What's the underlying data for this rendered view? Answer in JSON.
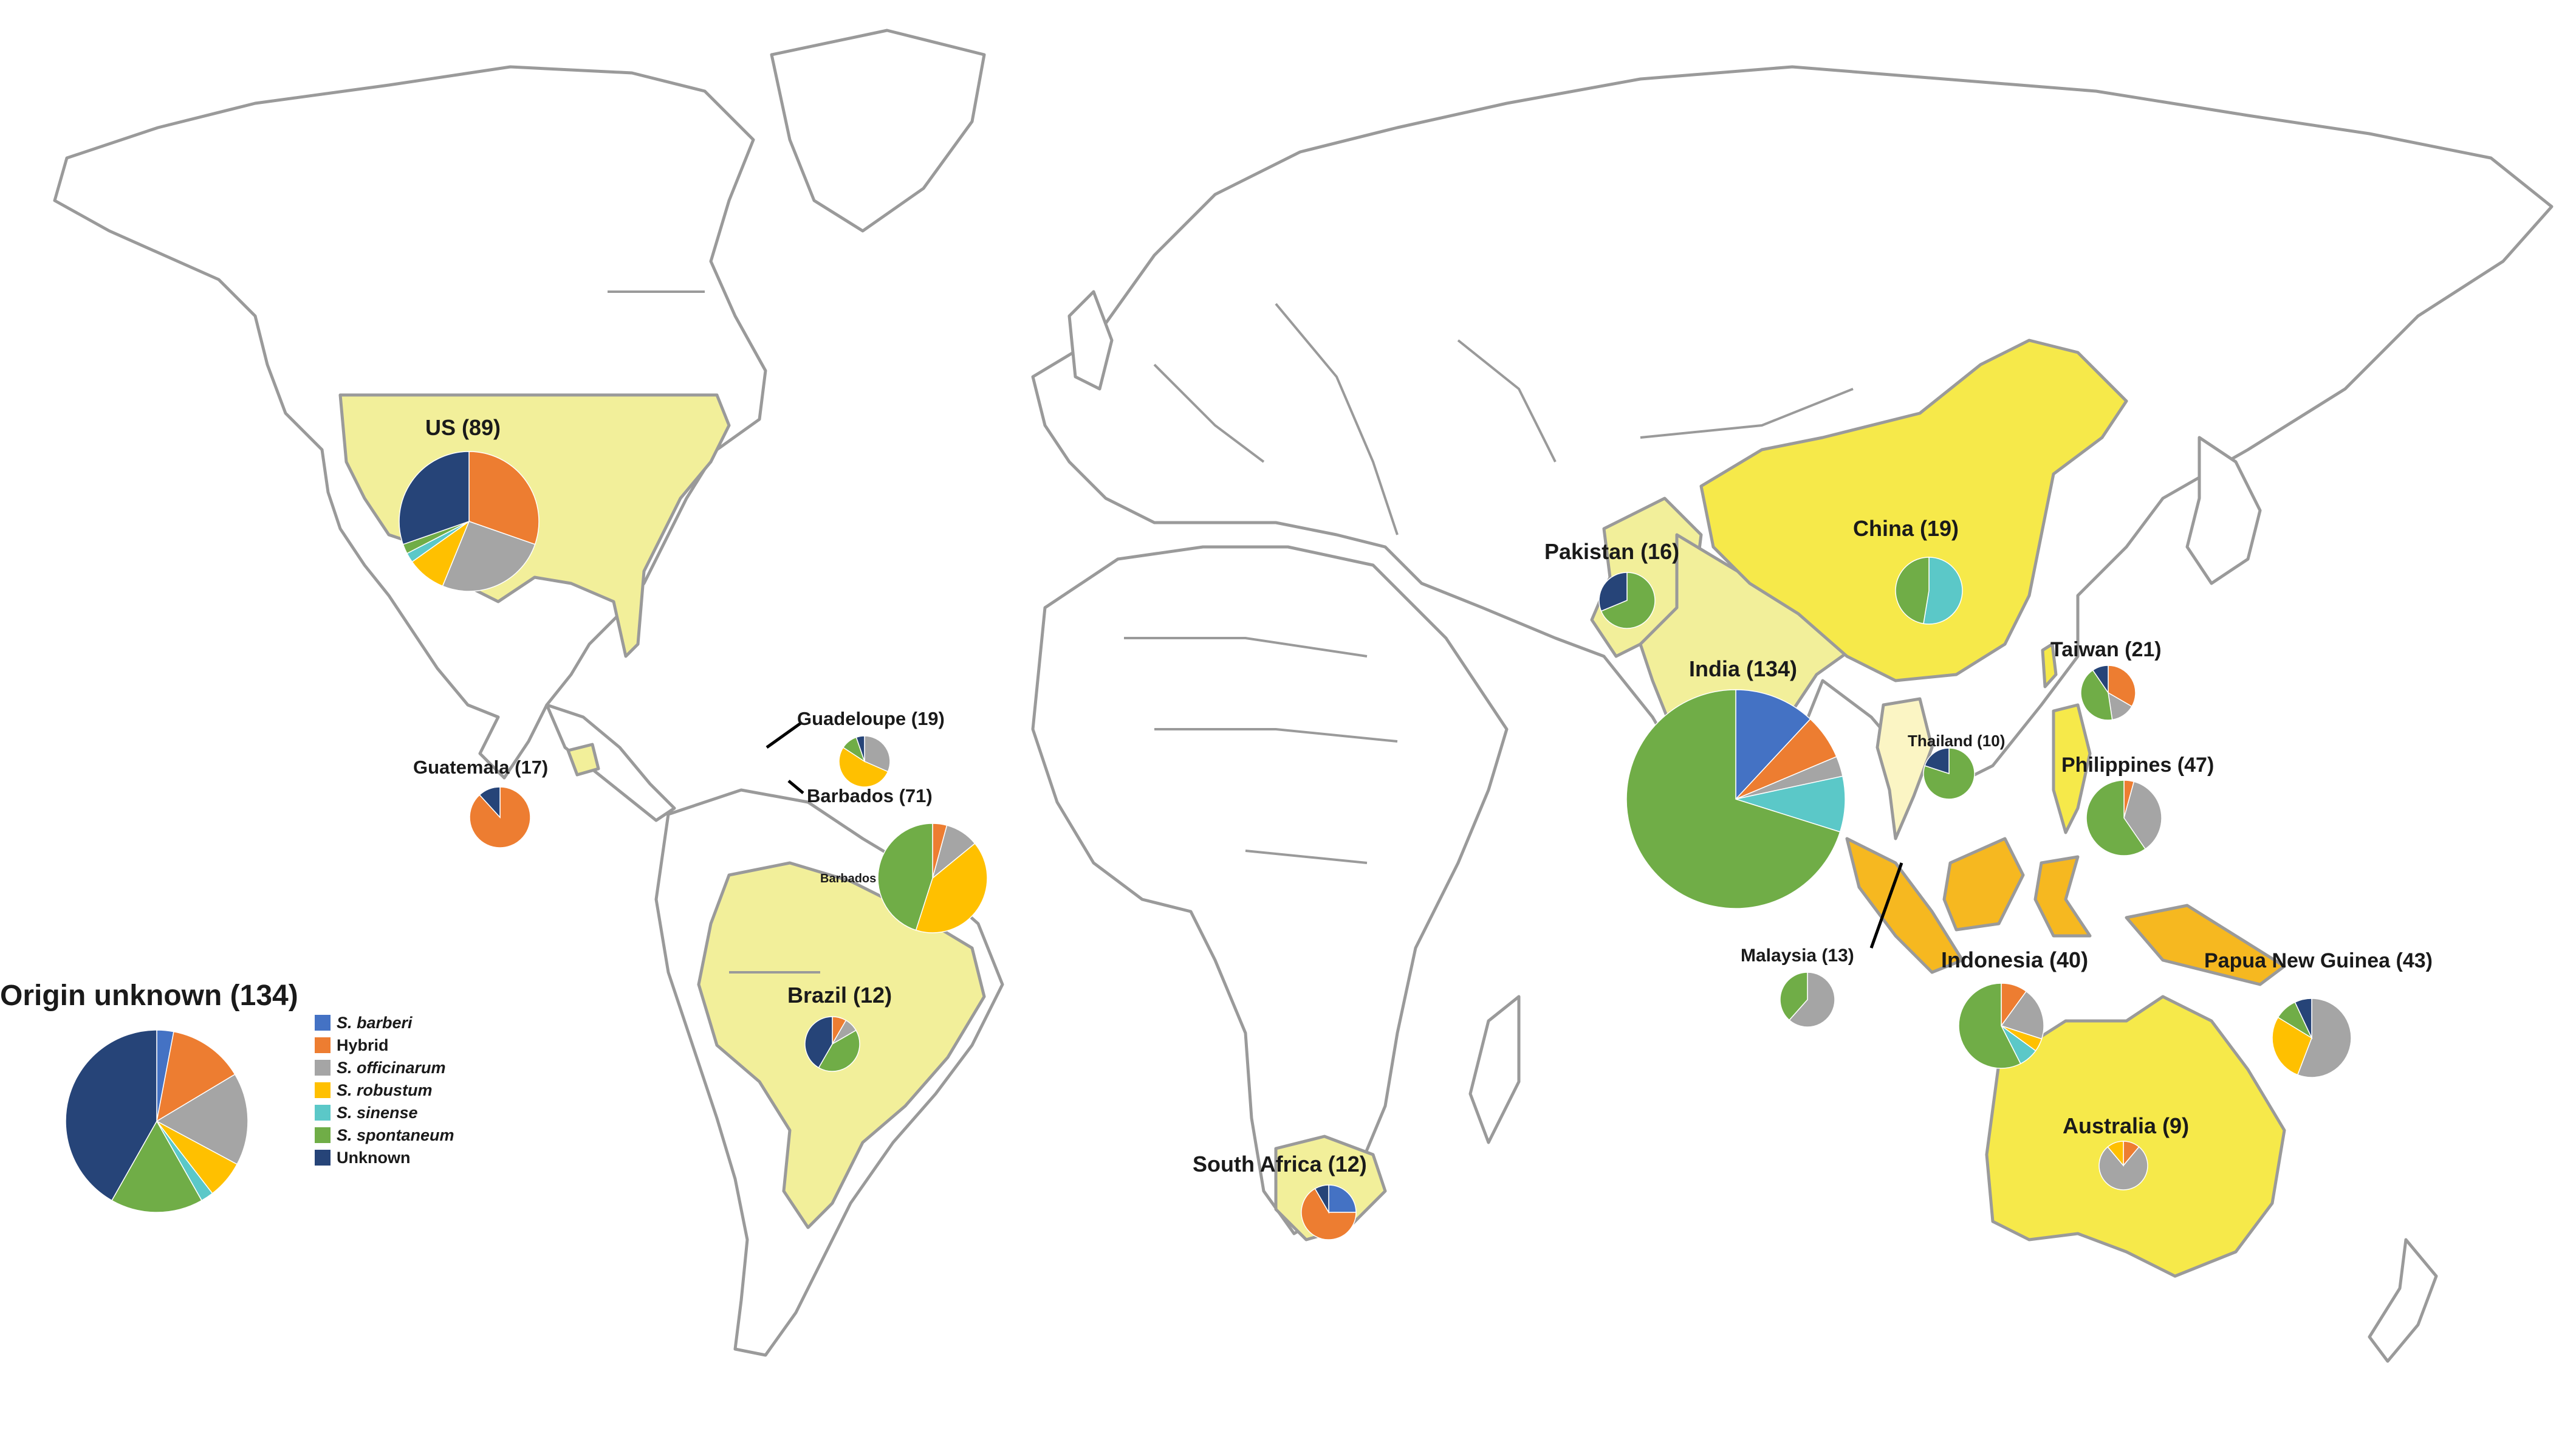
{
  "colors": {
    "land": "#ffffff",
    "border": "#9a9a9a",
    "highlight_light": "#f2ef9a",
    "highlight_strong": "#f6e94a",
    "highlight_orange": "#f6b820"
  },
  "legend": [
    {
      "label": "S. barberi",
      "color": "#4472c4",
      "italic": true
    },
    {
      "label": "Hybrid",
      "color": "#ed7d31",
      "italic": false
    },
    {
      "label": "S. officinarum",
      "color": "#a5a5a5",
      "italic": true
    },
    {
      "label": "S. robustum",
      "color": "#ffc000",
      "italic": true
    },
    {
      "label": "S. sinense",
      "color": "#5bc8c8",
      "italic": true
    },
    {
      "label": "S. spontaneum",
      "color": "#70ad47",
      "italic": true
    },
    {
      "label": "Unknown",
      "color": "#264478",
      "italic": false
    }
  ],
  "chart_data": {
    "type": "pie",
    "order": [
      "S. barberi",
      "Hybrid",
      "S. officinarum",
      "S. robustum",
      "S. sinense",
      "S. spontaneum",
      "Unknown"
    ],
    "pies": [
      {
        "id": "us",
        "label": "US (89)",
        "country": "US",
        "n": 89,
        "values": [
          0,
          27,
          23,
          8,
          2,
          2,
          27
        ]
      },
      {
        "id": "guatemala",
        "label": "Guatemala (17)",
        "country": "Guatemala",
        "n": 17,
        "values": [
          0,
          15,
          0,
          0,
          0,
          0,
          2
        ]
      },
      {
        "id": "guadeloupe",
        "label": "Guadeloupe (19)",
        "country": "Guadeloupe",
        "n": 19,
        "values": [
          0,
          0,
          6,
          10,
          0,
          2,
          1
        ]
      },
      {
        "id": "barbados",
        "label": "Barbados (71)",
        "country": "Barbados",
        "n": 71,
        "values": [
          0,
          3,
          7,
          29,
          0,
          32,
          0
        ]
      },
      {
        "id": "brazil",
        "label": "Brazil (12)",
        "country": "Brazil",
        "n": 12,
        "values": [
          0,
          1,
          1,
          0,
          0,
          5,
          5
        ]
      },
      {
        "id": "south_africa",
        "label": "South Africa (12)",
        "country": "South Africa",
        "n": 12,
        "values": [
          3,
          8,
          0,
          0,
          0,
          0,
          1
        ]
      },
      {
        "id": "pakistan",
        "label": "Pakistan (16)",
        "country": "Pakistan",
        "n": 16,
        "values": [
          0,
          0,
          0,
          0,
          0,
          11,
          5
        ]
      },
      {
        "id": "india",
        "label": "India (134)",
        "country": "India",
        "n": 134,
        "values": [
          16,
          9,
          4,
          0,
          11,
          94,
          0
        ]
      },
      {
        "id": "china",
        "label": "China (19)",
        "country": "China",
        "n": 19,
        "values": [
          0,
          0,
          0,
          0,
          10,
          9,
          0
        ]
      },
      {
        "id": "taiwan",
        "label": "Taiwan (21)",
        "country": "Taiwan",
        "n": 21,
        "values": [
          0,
          7,
          3,
          0,
          0,
          9,
          2
        ]
      },
      {
        "id": "thailand",
        "label": "Thailand (10)",
        "country": "Thailand",
        "n": 10,
        "values": [
          0,
          0,
          0,
          0,
          0,
          8,
          2
        ]
      },
      {
        "id": "philippines",
        "label": "Philippines (47)",
        "country": "Philippines",
        "n": 47,
        "values": [
          0,
          2,
          17,
          0,
          0,
          28,
          0
        ]
      },
      {
        "id": "malaysia",
        "label": "Malaysia (13)",
        "country": "Malaysia",
        "n": 13,
        "values": [
          0,
          0,
          8,
          0,
          0,
          5,
          0
        ]
      },
      {
        "id": "indonesia",
        "label": "Indonesia (40)",
        "country": "Indonesia",
        "n": 40,
        "values": [
          0,
          4,
          8,
          2,
          3,
          23,
          0
        ]
      },
      {
        "id": "png",
        "label": "Papua New Guinea (43)",
        "country": "Papua New Guinea",
        "n": 43,
        "values": [
          0,
          0,
          24,
          12,
          0,
          4,
          3
        ]
      },
      {
        "id": "australia",
        "label": "Australia (9)",
        "country": "Australia",
        "n": 9,
        "values": [
          0,
          1,
          7,
          1,
          0,
          0,
          0
        ]
      },
      {
        "id": "origin_unknown",
        "label": "Origin unknown (134)",
        "country": "Origin unknown",
        "n": 134,
        "values": [
          4,
          18,
          22,
          9,
          3,
          22,
          56
        ]
      }
    ]
  },
  "extra_labels": {
    "barbados_inset": "Barbados"
  }
}
